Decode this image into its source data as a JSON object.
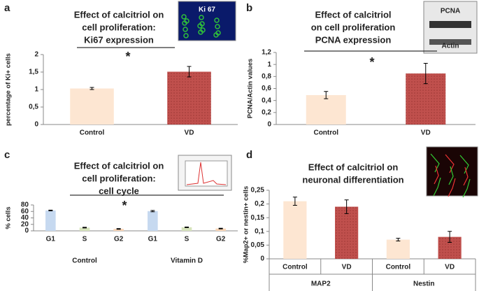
{
  "chart_data": [
    {
      "type": "bar",
      "panel": "a",
      "title": [
        "Effect of calcitriol on",
        "cell proliferation:",
        "Ki67 expression"
      ],
      "inset_labels": [
        "Ki 67"
      ],
      "ylabel": "percentage of Ki+ cells",
      "categories": [
        "Control",
        "VD"
      ],
      "values": [
        1.03,
        1.51
      ],
      "errors": [
        0.03,
        0.15
      ],
      "colors": [
        "#fde6d2",
        "#c0504d"
      ],
      "ylim": [
        0,
        2
      ],
      "yticks": [
        0,
        {
          "value": 0.5,
          "label": "0,5"
        },
        1,
        {
          "value": 1.5,
          "label": "1,5"
        },
        2
      ],
      "annotation": "*"
    },
    {
      "type": "bar",
      "panel": "b",
      "title": [
        "Effect of calcitriol",
        "on cell proliferation",
        "PCNA expression"
      ],
      "inset_labels": [
        "PCNA",
        "Actin"
      ],
      "ylabel": "PCNA/Actin values",
      "categories": [
        "Control",
        "VD"
      ],
      "values": [
        0.49,
        0.85
      ],
      "errors": [
        0.06,
        0.17
      ],
      "colors": [
        "#fde6d2",
        "#c0504d"
      ],
      "ylim": [
        0,
        1.2
      ],
      "yticks": [
        0,
        {
          "value": 0.2,
          "label": "0,2"
        },
        {
          "value": 0.4,
          "label": "0,4"
        },
        {
          "value": 0.6,
          "label": "0,6"
        },
        {
          "value": 0.8,
          "label": "0,8"
        },
        1,
        {
          "value": 1.2,
          "label": "1,2"
        }
      ],
      "annotation": "*"
    },
    {
      "type": "bar",
      "panel": "c",
      "title": [
        "Effect of calcitriol on",
        "cell proliferation:",
        "cell cycle"
      ],
      "inset_labels": [],
      "ylabel": "% cells",
      "categories": [
        "G1",
        "S",
        "G2",
        "G1",
        "S",
        "G2"
      ],
      "groups": [
        "Control",
        "Vitamin D"
      ],
      "values": [
        63,
        10,
        6,
        61,
        11,
        7
      ],
      "errors": [
        1,
        1,
        1,
        2,
        1,
        1
      ],
      "colors": [
        "#c6d9f0",
        "#d7e4bc",
        "#fbd5b5",
        "#c6d9f0",
        "#d7e4bc",
        "#fbd5b5"
      ],
      "ylim": [
        0,
        80
      ],
      "yticks": [
        0,
        20,
        40,
        60,
        80
      ],
      "annotation": "*"
    },
    {
      "type": "bar",
      "panel": "d",
      "title": [
        "Effect of calcitriol on",
        "neuronal differentiation"
      ],
      "inset_labels": [],
      "ylabel": "%Map2+ or nestin+ cells",
      "categories": [
        "Control",
        "VD",
        "Control",
        "VD"
      ],
      "groups": [
        "MAP2",
        "Nestin"
      ],
      "values": [
        0.21,
        0.19,
        0.07,
        0.08
      ],
      "errors": [
        0.015,
        0.025,
        0.005,
        0.02
      ],
      "colors": [
        "#fde6d2",
        "#c0504d",
        "#fde6d2",
        "#c0504d"
      ],
      "ylim": [
        0,
        0.25
      ],
      "yticks": [
        0,
        {
          "value": 0.05,
          "label": "0,05"
        },
        {
          "value": 0.1,
          "label": "0,1"
        },
        {
          "value": 0.15,
          "label": "0,15"
        },
        {
          "value": 0.2,
          "label": "0,2"
        },
        {
          "value": 0.25,
          "label": "0,25"
        }
      ]
    }
  ]
}
